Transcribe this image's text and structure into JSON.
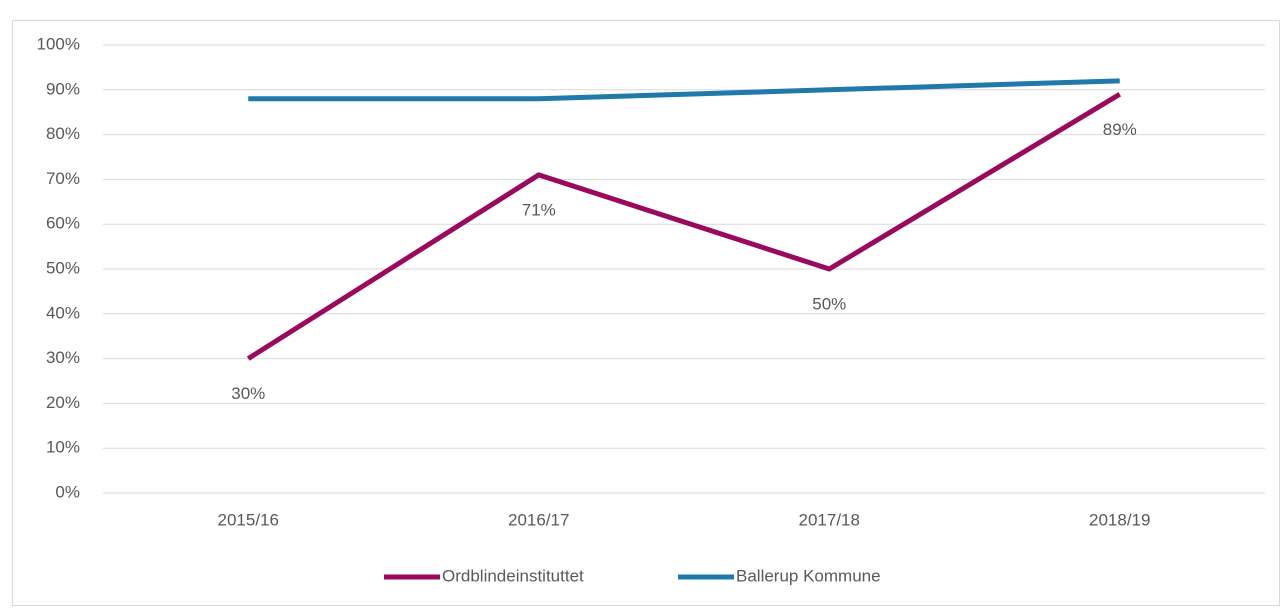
{
  "chart_data": {
    "type": "line",
    "categories": [
      "2015/16",
      "2016/17",
      "2017/18",
      "2018/19"
    ],
    "series": [
      {
        "name": "Ordblindeinstituttet",
        "color": "#990a5e",
        "values": [
          30,
          71,
          50,
          89
        ],
        "value_labels": [
          "30%",
          "71%",
          "50%",
          "89%"
        ]
      },
      {
        "name": "Ballerup Kommune",
        "color": "#1f7aaa",
        "values": [
          88,
          88,
          90,
          92
        ]
      }
    ],
    "ylim": [
      0,
      100
    ],
    "yticks": [
      {
        "value": 0,
        "label": "0%"
      },
      {
        "value": 10,
        "label": "10%"
      },
      {
        "value": 20,
        "label": "20%"
      },
      {
        "value": 30,
        "label": "30%"
      },
      {
        "value": 40,
        "label": "40%"
      },
      {
        "value": 50,
        "label": "50%"
      },
      {
        "value": 60,
        "label": "60%"
      },
      {
        "value": 70,
        "label": "70%"
      },
      {
        "value": 80,
        "label": "80%"
      },
      {
        "value": 90,
        "label": "90%"
      },
      {
        "value": 100,
        "label": "100%"
      }
    ],
    "grid": true,
    "legend": "bottom"
  }
}
